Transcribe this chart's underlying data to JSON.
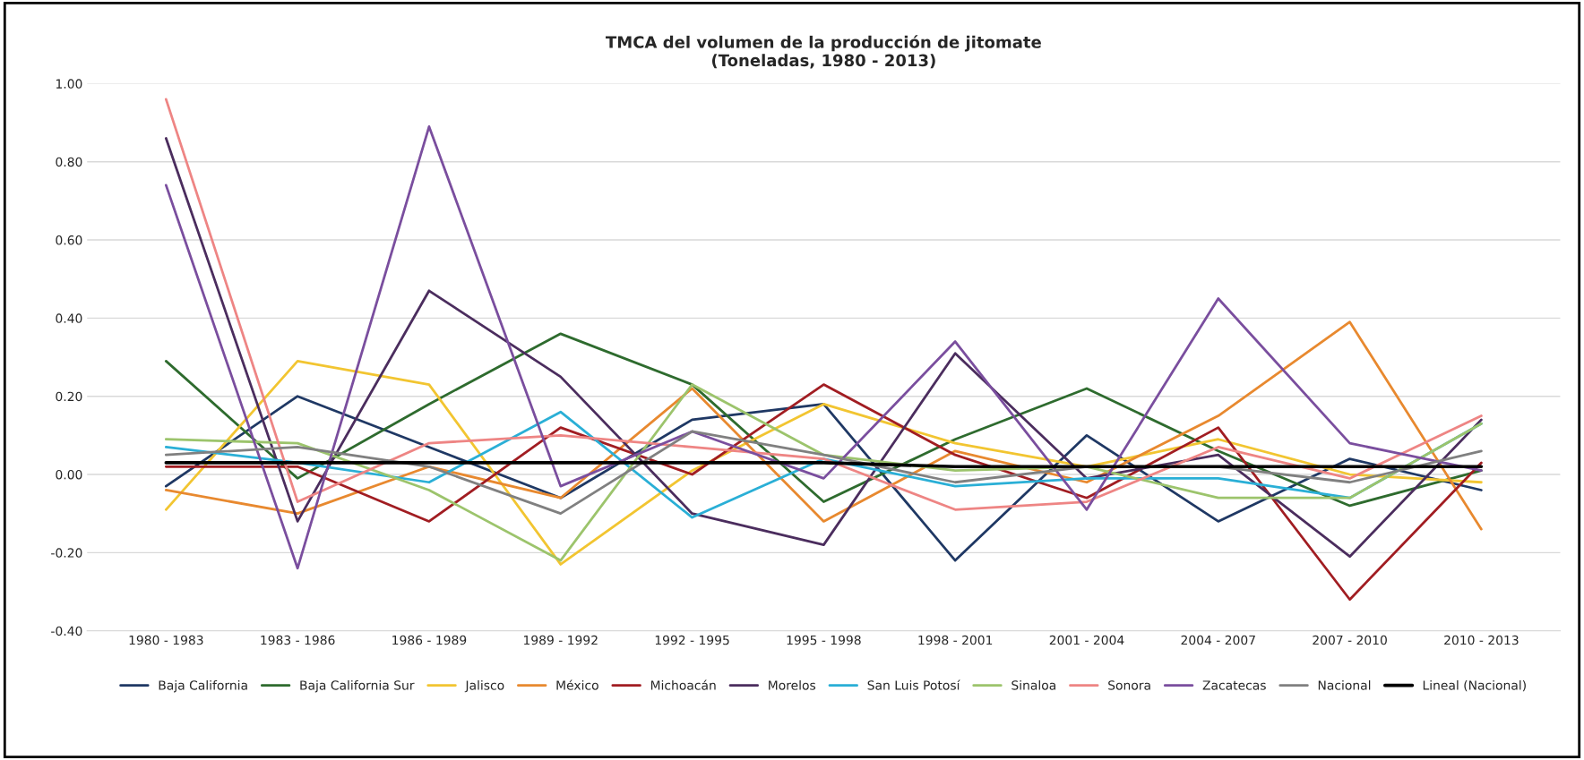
{
  "chart_data": {
    "type": "line",
    "title": "TMCA del volumen de la producción de jitomate\n(Toneladas, 1980 - 2013)",
    "categories": [
      "1980 - 1983",
      "1983 - 1986",
      "1986 - 1989",
      "1989 - 1992",
      "1992 - 1995",
      "1995 - 1998",
      "1998 - 2001",
      "2001 - 2004",
      "2004 - 2007",
      "2007 - 2010",
      "2010 - 2013"
    ],
    "ylim": [
      -0.4,
      1.0
    ],
    "yticks": [
      {
        "value": -0.4,
        "label": "-0.40"
      },
      {
        "value": -0.2,
        "label": "-0.20"
      },
      {
        "value": 0,
        "label": "0.00"
      },
      {
        "value": 0.2,
        "label": "0.20"
      },
      {
        "value": 0.4,
        "label": "0.40"
      },
      {
        "value": 0.6,
        "label": "0.60"
      },
      {
        "value": 0.8,
        "label": "0.80"
      },
      {
        "value": 1.0,
        "label": "1.00"
      }
    ],
    "grid": "y",
    "legend": "bottom",
    "marker": "none",
    "line_style": "solid",
    "series": [
      {
        "name": "Baja California",
        "color": "#1f3864",
        "values": [
          -0.03,
          0.2,
          0.07,
          -0.06,
          0.14,
          0.18,
          -0.22,
          0.1,
          -0.12,
          0.04,
          -0.04
        ]
      },
      {
        "name": "Baja California Sur",
        "color": "#2e6b2e",
        "values": [
          0.29,
          -0.01,
          0.18,
          0.36,
          0.23,
          -0.07,
          0.09,
          0.22,
          0.06,
          -0.08,
          0.01
        ]
      },
      {
        "name": "Jalisco",
        "color": "#f2c531",
        "values": [
          -0.09,
          0.29,
          0.23,
          -0.23,
          0.01,
          0.18,
          0.08,
          0.02,
          0.09,
          0.0,
          -0.02
        ]
      },
      {
        "name": "México",
        "color": "#e8892f",
        "values": [
          -0.04,
          -0.1,
          0.02,
          -0.06,
          0.22,
          -0.12,
          0.06,
          -0.02,
          0.15,
          0.39,
          -0.14
        ]
      },
      {
        "name": "Michoacán",
        "color": "#a11d22",
        "values": [
          0.02,
          0.02,
          -0.12,
          0.12,
          0.0,
          0.23,
          0.05,
          -0.06,
          0.12,
          -0.32,
          0.03
        ]
      },
      {
        "name": "Morelos",
        "color": "#4b2d5e",
        "values": [
          0.86,
          -0.12,
          0.47,
          0.25,
          -0.1,
          -0.18,
          0.31,
          -0.01,
          0.05,
          -0.21,
          0.14
        ]
      },
      {
        "name": "San Luis Potosí",
        "color": "#2aafd6",
        "values": [
          0.07,
          0.03,
          -0.02,
          0.16,
          -0.11,
          0.04,
          -0.03,
          -0.01,
          -0.01,
          -0.06,
          0.13
        ]
      },
      {
        "name": "Sinaloa",
        "color": "#9cc46c",
        "values": [
          0.09,
          0.08,
          -0.04,
          -0.22,
          0.23,
          0.05,
          0.01,
          0.02,
          -0.06,
          -0.06,
          0.13
        ]
      },
      {
        "name": "Sonora",
        "color": "#ee8584",
        "values": [
          0.96,
          -0.07,
          0.08,
          0.1,
          0.07,
          0.04,
          -0.09,
          -0.07,
          0.07,
          -0.01,
          0.15
        ]
      },
      {
        "name": "Zacatecas",
        "color": "#7a4e9e",
        "values": [
          0.74,
          -0.24,
          0.89,
          -0.03,
          0.11,
          -0.01,
          0.34,
          -0.09,
          0.45,
          0.08,
          0.01
        ]
      },
      {
        "name": "Nacional",
        "color": "#808080",
        "values": [
          0.05,
          0.07,
          0.02,
          -0.1,
          0.11,
          0.05,
          -0.02,
          0.02,
          0.02,
          -0.02,
          0.06
        ]
      },
      {
        "name": "Lineal (Nacional)",
        "color": "#000000",
        "values": [
          0.03,
          0.03,
          0.03,
          0.03,
          0.03,
          0.03,
          0.02,
          0.02,
          0.02,
          0.02,
          0.02
        ]
      }
    ]
  }
}
